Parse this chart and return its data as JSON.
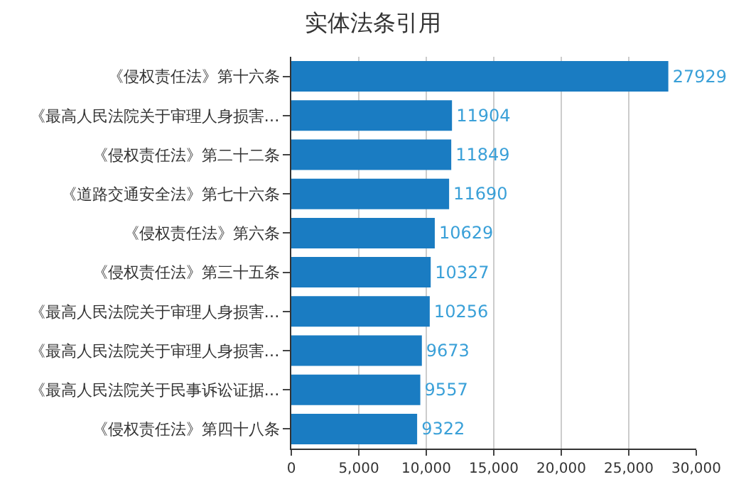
{
  "chart_data": {
    "type": "bar",
    "orientation": "horizontal",
    "title": "实体法条引用",
    "categories": [
      "《侵权责任法》第十六条",
      "《最高人民法院关于审理人身损害…",
      "《侵权责任法》第二十二条",
      "《道路交通安全法》第七十六条",
      "《侵权责任法》第六条",
      "《侵权责任法》第三十五条",
      "《最高人民法院关于审理人身损害…",
      "《最高人民法院关于审理人身损害…",
      "《最高人民法院关于民事诉讼证据…",
      "《侵权责任法》第四十八条"
    ],
    "values": [
      27929,
      11904,
      11849,
      11690,
      10629,
      10327,
      10256,
      9673,
      9557,
      9322
    ],
    "color": "#1a7cc2",
    "data_labels": true,
    "xlim": [
      0,
      30000
    ],
    "xticks": [
      0,
      {
        "value": 5000,
        "label": "5,000"
      },
      {
        "value": 10000,
        "label": "10,000"
      },
      {
        "value": 15000,
        "label": "15,000"
      },
      {
        "value": 20000,
        "label": "20,000"
      },
      {
        "value": 25000,
        "label": "25,000"
      },
      {
        "value": 30000,
        "label": "30,000"
      }
    ],
    "grid": "x",
    "legend": false
  }
}
